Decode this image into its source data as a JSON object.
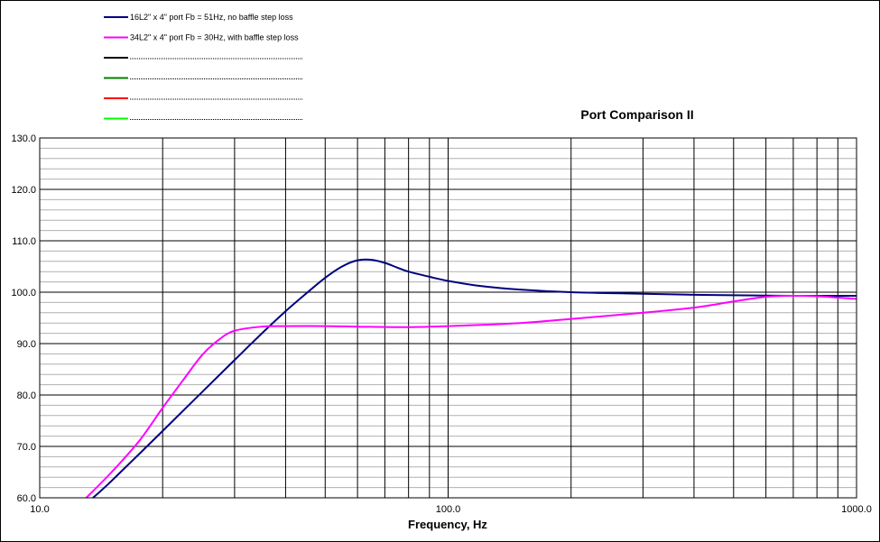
{
  "chart_data": {
    "type": "line",
    "title": "Port Comparison II",
    "xlabel": "Frequency, Hz",
    "ylabel": "",
    "xscale": "log",
    "xlim": [
      10,
      1000
    ],
    "ylim": [
      60,
      130
    ],
    "grid": true,
    "legend_position": "top-left",
    "x_ticks": [
      "10.0",
      "100.0",
      "1000.0"
    ],
    "y_ticks": [
      "60.0",
      "70.0",
      "80.0",
      "90.0",
      "100.0",
      "110.0",
      "120.0",
      "130.0"
    ],
    "series": [
      {
        "name": "16L2\" x 4\" port Fb = 51Hz, no baffle step loss",
        "color": "#000080",
        "x": [
          13.5,
          15,
          20,
          25,
          30,
          35,
          40,
          45,
          50,
          55,
          60,
          65,
          70,
          75,
          80,
          90,
          100,
          120,
          150,
          200,
          300,
          400,
          500,
          700,
          1000
        ],
        "y": [
          60,
          63.3,
          73,
          80.6,
          86.8,
          92,
          96.3,
          99.8,
          102.8,
          105,
          106.2,
          106.3,
          105.7,
          104.8,
          104,
          103,
          102.2,
          101.2,
          100.5,
          100,
          99.7,
          99.5,
          99.4,
          99.3,
          99.3
        ]
      },
      {
        "name": "34L2\" x 4\" port Fb = 30Hz, with baffle step loss",
        "color": "#FF00FF",
        "x": [
          13,
          15,
          17.5,
          20,
          22.5,
          25,
          27.5,
          30,
          35,
          40,
          50,
          60,
          80,
          100,
          150,
          200,
          300,
          400,
          500,
          600,
          700,
          800,
          1000
        ],
        "y": [
          60,
          65,
          71,
          77.5,
          83,
          87.8,
          90.8,
          92.5,
          93.3,
          93.4,
          93.4,
          93.3,
          93.2,
          93.4,
          94,
          94.8,
          96,
          97,
          98.2,
          99.1,
          99.3,
          99.2,
          98.7
        ]
      },
      {
        "name": "",
        "color": "#000000",
        "x": [],
        "y": []
      },
      {
        "name": "",
        "color": "#008000",
        "x": [],
        "y": []
      },
      {
        "name": "",
        "color": "#FF0000",
        "x": [],
        "y": []
      },
      {
        "name": "",
        "color": "#00FF00",
        "x": [],
        "y": []
      }
    ]
  }
}
